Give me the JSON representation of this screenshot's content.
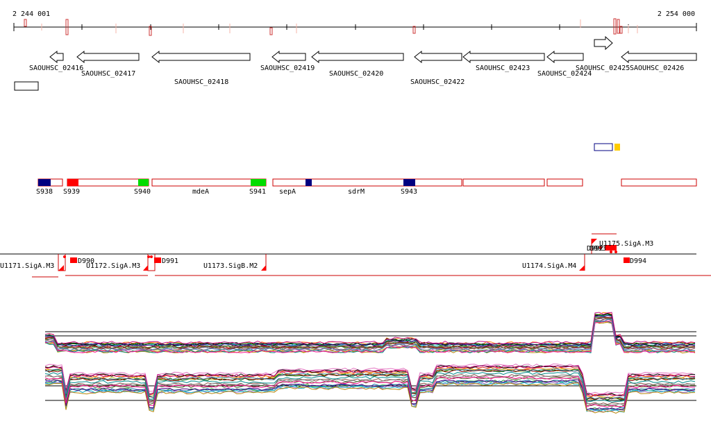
{
  "coords": {
    "start": "2 244 001",
    "end": "2 254 000"
  },
  "genes": [
    {
      "label": "SAOUHSC_02416"
    },
    {
      "label": "SAOUHSC_02417"
    },
    {
      "label": "SAOUHSC_02418"
    },
    {
      "label": "SAOUHSC_02419"
    },
    {
      "label": "SAOUHSC_02420"
    },
    {
      "label": "SAOUHSC_02422"
    },
    {
      "label": "SAOUHSC_02423"
    },
    {
      "label": "SAOUHSC_02424"
    },
    {
      "label": "SAOUHSC_02425"
    },
    {
      "label": "SAOUHSC_02426"
    }
  ],
  "segments": [
    {
      "label": "S938"
    },
    {
      "label": "S939"
    },
    {
      "label": "S940"
    },
    {
      "label": "mdeA"
    },
    {
      "label": "S941"
    },
    {
      "label": "sepA"
    },
    {
      "label": "sdrM"
    },
    {
      "label": "S943"
    }
  ],
  "transcripts": [
    {
      "label": "U1171.SigA.M3"
    },
    {
      "label": "U1172.SigA.M3"
    },
    {
      "label": "U1173.SigB.M2"
    },
    {
      "label": "U1174.SigA.M4"
    },
    {
      "label": "U1175.SigA.M3"
    }
  ],
  "downs": [
    {
      "label": "D990"
    },
    {
      "label": "D991"
    },
    {
      "label": "D992"
    },
    {
      "label": "D993"
    },
    {
      "label": "D994"
    }
  ],
  "colors": {
    "segment_outline": "#cc0000",
    "navy": "#000080",
    "red": "#ff0000",
    "green": "#00dd00",
    "gold": "#ffcc00"
  }
}
